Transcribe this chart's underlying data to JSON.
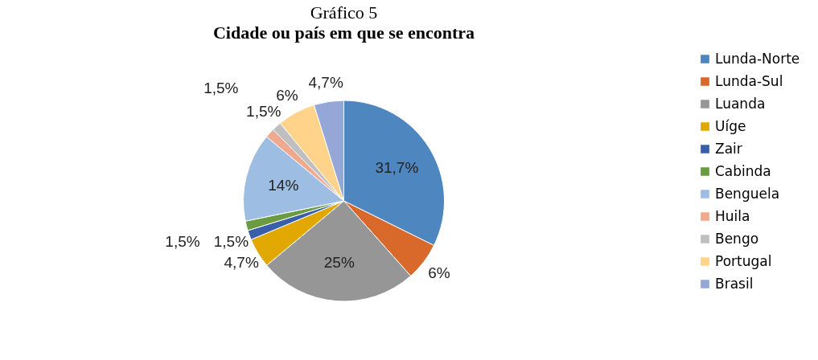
{
  "chart_data": {
    "type": "pie",
    "title": "Gráfico 5",
    "subtitle": "Cidade ou país em que se encontra",
    "categories": [
      "Lunda-Norte",
      "Lunda-Sul",
      "Luanda",
      "Uíge",
      "Zair",
      "Cabinda",
      "Benguela",
      "Huila",
      "Bengo",
      "Portugal",
      "Brasil"
    ],
    "values": [
      31.7,
      6,
      25,
      4.7,
      1.5,
      1.5,
      14,
      1.5,
      1.5,
      6,
      4.7
    ],
    "value_labels": [
      "31,7%",
      "6%",
      "25%",
      "4,7%",
      "1,5%",
      "1,5%",
      "14%",
      "1,5%",
      "1,5%",
      "6%",
      "4,7%"
    ],
    "colors": [
      "#4e86c0",
      "#d8692a",
      "#969696",
      "#e0a800",
      "#3a5faa",
      "#6a9b40",
      "#9dbde2",
      "#f0a88f",
      "#bfbfbf",
      "#ffd38a",
      "#94a7d6"
    ],
    "legend": "right"
  }
}
